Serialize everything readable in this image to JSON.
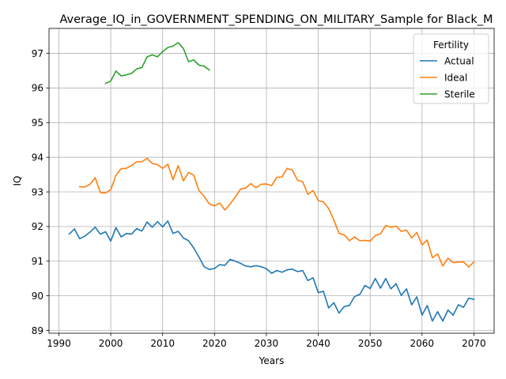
{
  "chart_data": {
    "type": "line",
    "title": "Average_IQ_in_GOVERNMENT_SPENDING_ON_MILITARY_Sample for Black_M",
    "xlabel": "Years",
    "ylabel": "IQ",
    "xlim": [
      1988.1,
      2073.9
    ],
    "ylim": [
      88.92,
      97.72
    ],
    "xticks": [
      1990,
      2000,
      2010,
      2020,
      2030,
      2040,
      2050,
      2060,
      2070
    ],
    "yticks": [
      89,
      90,
      91,
      92,
      93,
      94,
      95,
      96,
      97
    ],
    "grid": true,
    "legend": {
      "title": "Fertility",
      "position": "top-right"
    },
    "series": [
      {
        "name": "Actual",
        "color": "#1f77b4",
        "x": [
          1992,
          1993,
          1994,
          1995,
          1996,
          1997,
          1998,
          1999,
          2000,
          2001,
          2002,
          2003,
          2004,
          2005,
          2006,
          2007,
          2008,
          2009,
          2010,
          2011,
          2012,
          2013,
          2014,
          2015,
          2016,
          2017,
          2018,
          2019,
          2020,
          2021,
          2022,
          2023,
          2024,
          2025,
          2026,
          2027,
          2028,
          2029,
          2030,
          2031,
          2032,
          2033,
          2034,
          2035,
          2036,
          2037,
          2038,
          2039,
          2040,
          2041,
          2042,
          2043,
          2044,
          2045,
          2046,
          2047,
          2048,
          2049,
          2050,
          2051,
          2052,
          2053,
          2054,
          2055,
          2056,
          2057,
          2058,
          2059,
          2060,
          2061,
          2062,
          2063,
          2064,
          2065,
          2066,
          2067,
          2068,
          2069,
          2070
        ],
        "y": [
          91.78,
          91.93,
          91.65,
          91.72,
          91.84,
          91.98,
          91.78,
          91.85,
          91.58,
          91.97,
          91.7,
          91.8,
          91.78,
          91.94,
          91.87,
          92.13,
          91.98,
          92.14,
          91.99,
          92.16,
          91.8,
          91.86,
          91.67,
          91.59,
          91.38,
          91.12,
          90.84,
          90.76,
          90.79,
          90.9,
          90.88,
          91.05,
          91.0,
          90.94,
          90.86,
          90.84,
          90.87,
          90.84,
          90.78,
          90.65,
          90.73,
          90.68,
          90.75,
          90.77,
          90.7,
          90.73,
          90.44,
          90.52,
          90.09,
          90.13,
          89.65,
          89.8,
          89.5,
          89.69,
          89.72,
          89.98,
          90.04,
          90.3,
          90.21,
          90.5,
          90.22,
          90.5,
          90.2,
          90.35,
          90.01,
          90.2,
          89.74,
          89.97,
          89.44,
          89.72,
          89.27,
          89.54,
          89.27,
          89.59,
          89.44,
          89.74,
          89.67,
          89.93,
          89.9
        ]
      },
      {
        "name": "Ideal",
        "color": "#ff7f0e",
        "x": [
          1994,
          1995,
          1996,
          1997,
          1998,
          1999,
          2000,
          2001,
          2002,
          2003,
          2004,
          2005,
          2006,
          2007,
          2008,
          2009,
          2010,
          2011,
          2012,
          2013,
          2014,
          2015,
          2016,
          2017,
          2018,
          2019,
          2020,
          2021,
          2022,
          2023,
          2024,
          2025,
          2026,
          2027,
          2028,
          2029,
          2030,
          2031,
          2032,
          2033,
          2034,
          2035,
          2036,
          2037,
          2038,
          2039,
          2040,
          2041,
          2042,
          2043,
          2044,
          2045,
          2046,
          2047,
          2048,
          2049,
          2050,
          2051,
          2052,
          2053,
          2054,
          2055,
          2056,
          2057,
          2058,
          2059,
          2060,
          2061,
          2062,
          2063,
          2064,
          2065,
          2066,
          2067,
          2068,
          2069,
          2070
        ],
        "y": [
          93.15,
          93.14,
          93.22,
          93.41,
          92.98,
          92.97,
          93.06,
          93.48,
          93.67,
          93.68,
          93.76,
          93.87,
          93.87,
          93.97,
          93.82,
          93.79,
          93.68,
          93.8,
          93.35,
          93.76,
          93.32,
          93.56,
          93.48,
          93.04,
          92.87,
          92.65,
          92.6,
          92.68,
          92.48,
          92.65,
          92.85,
          93.08,
          93.11,
          93.24,
          93.12,
          93.22,
          93.23,
          93.18,
          93.42,
          93.43,
          93.68,
          93.63,
          93.34,
          93.29,
          92.93,
          93.04,
          92.75,
          92.71,
          92.52,
          92.19,
          91.8,
          91.76,
          91.59,
          91.7,
          91.59,
          91.6,
          91.58,
          91.74,
          91.79,
          92.03,
          91.98,
          92.01,
          91.86,
          91.9,
          91.67,
          91.83,
          91.47,
          91.61,
          91.1,
          91.21,
          90.86,
          91.09,
          90.96,
          90.97,
          90.98,
          90.83,
          90.98
        ]
      },
      {
        "name": "Sterile",
        "color": "#2ca02c",
        "x": [
          1999,
          2000,
          2001,
          2002,
          2003,
          2004,
          2005,
          2006,
          2007,
          2008,
          2009,
          2010,
          2011,
          2012,
          2013,
          2014,
          2015,
          2016,
          2017,
          2018,
          2019
        ],
        "y": [
          96.13,
          96.2,
          96.49,
          96.35,
          96.38,
          96.42,
          96.55,
          96.59,
          96.9,
          96.96,
          96.9,
          97.05,
          97.17,
          97.21,
          97.31,
          97.14,
          96.76,
          96.81,
          96.66,
          96.63,
          96.52
        ]
      }
    ]
  }
}
